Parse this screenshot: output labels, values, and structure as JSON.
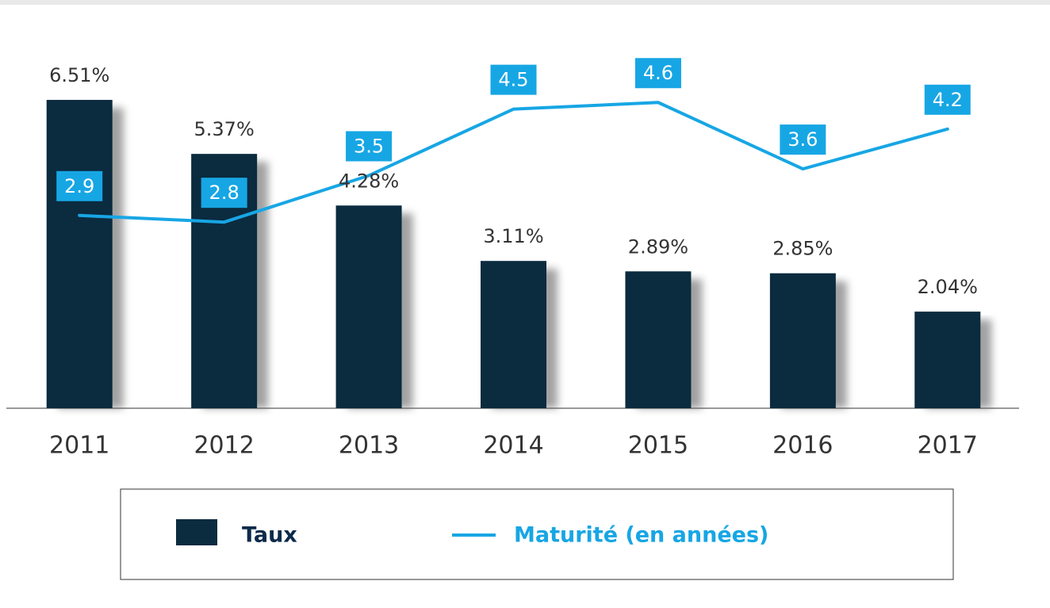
{
  "chart_data": {
    "type": "bar",
    "categories": [
      "2011",
      "2012",
      "2013",
      "2014",
      "2015",
      "2016",
      "2017"
    ],
    "series": [
      {
        "name": "Taux",
        "type": "bar",
        "color": "#0b2b3f",
        "values": [
          6.51,
          5.37,
          4.28,
          3.11,
          2.89,
          2.85,
          2.04
        ],
        "value_labels": [
          "6.51%",
          "5.37%",
          "4.28%",
          "3.11%",
          "2.89%",
          "2.85%",
          "2.04%"
        ]
      },
      {
        "name": "Maturité (en années)",
        "type": "line",
        "axis": "y2",
        "color": "#17a6e4",
        "values": [
          2.9,
          2.8,
          3.5,
          4.5,
          4.6,
          3.6,
          4.2
        ]
      }
    ],
    "ylim": [
      0,
      8
    ],
    "y2lim": [
      0,
      5.7
    ],
    "legend": "bottom"
  }
}
